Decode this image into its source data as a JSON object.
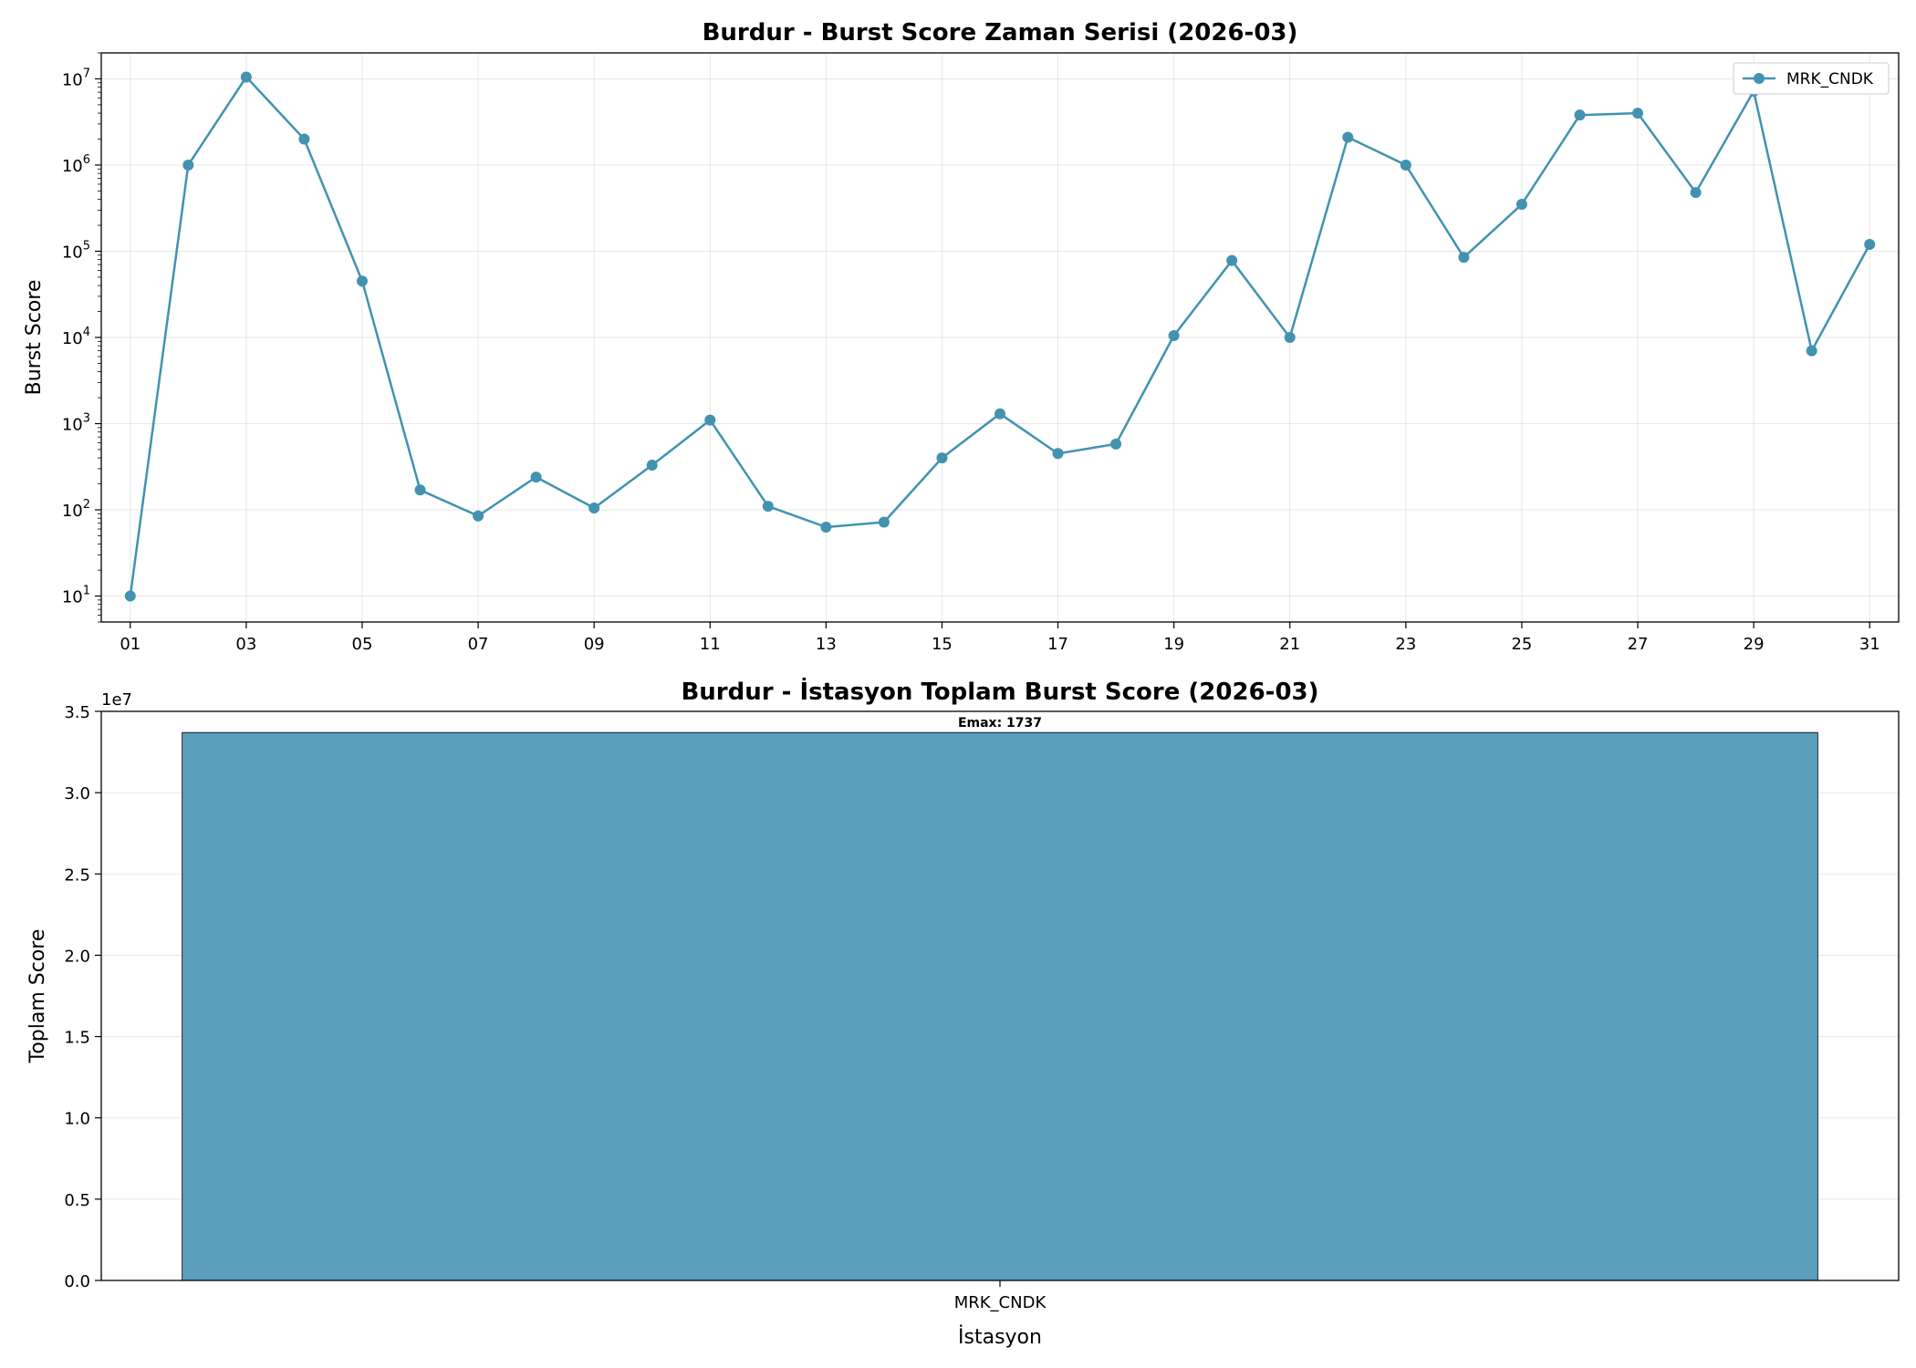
{
  "chart_data": [
    {
      "type": "line",
      "title": "Burdur - Burst Score Zaman Serisi (2026-03)",
      "xlabel": "",
      "ylabel": "Burst Score",
      "yscale": "log",
      "ylim": [
        5,
        20000000
      ],
      "y_ticks": [
        10,
        100,
        1000,
        10000,
        100000,
        1000000,
        10000000
      ],
      "y_tick_labels": [
        {
          "base": "10",
          "exp": "1"
        },
        {
          "base": "10",
          "exp": "2"
        },
        {
          "base": "10",
          "exp": "3"
        },
        {
          "base": "10",
          "exp": "4"
        },
        {
          "base": "10",
          "exp": "5"
        },
        {
          "base": "10",
          "exp": "6"
        },
        {
          "base": "10",
          "exp": "7"
        }
      ],
      "x_ticks": [
        "01",
        "03",
        "05",
        "07",
        "09",
        "11",
        "13",
        "15",
        "17",
        "19",
        "21",
        "23",
        "25",
        "27",
        "29",
        "31"
      ],
      "grid": true,
      "legend": "top-right",
      "color": "#4292b0",
      "series": [
        {
          "name": "MRK_CNDK",
          "x": [
            "01",
            "02",
            "03",
            "04",
            "05",
            "06",
            "07",
            "08",
            "09",
            "10",
            "11",
            "12",
            "13",
            "14",
            "15",
            "16",
            "17",
            "18",
            "19",
            "20",
            "21",
            "22",
            "23",
            "24",
            "25",
            "26",
            "27",
            "28",
            "29",
            "30",
            "31"
          ],
          "values": [
            10,
            1000000,
            10500000,
            2000000,
            45000,
            170,
            85,
            240,
            105,
            330,
            1100,
            110,
            63,
            72,
            400,
            1300,
            450,
            580,
            10500,
            78000,
            10000,
            2100000,
            1000000,
            85000,
            350000,
            3800000,
            4000000,
            480000,
            7200000,
            7000,
            120000
          ]
        }
      ]
    },
    {
      "type": "bar",
      "title": "Burdur - İstasyon Toplam Burst Score (2026-03)",
      "xlabel": "İstasyon",
      "ylabel": "Toplam Score",
      "ylim": [
        0,
        35000000
      ],
      "y_ticks": [
        0,
        5000000,
        10000000,
        15000000,
        20000000,
        25000000,
        30000000,
        35000000
      ],
      "y_tick_labels": [
        "0.0",
        "0.5",
        "1.0",
        "1.5",
        "2.0",
        "2.5",
        "3.0",
        "3.5"
      ],
      "y_offset_label": "1e7",
      "grid": true,
      "color": "#5a9dbd",
      "categories": [
        "MRK_CNDK"
      ],
      "values": [
        33700000
      ],
      "annotations": [
        "Emax: 1737"
      ]
    }
  ]
}
